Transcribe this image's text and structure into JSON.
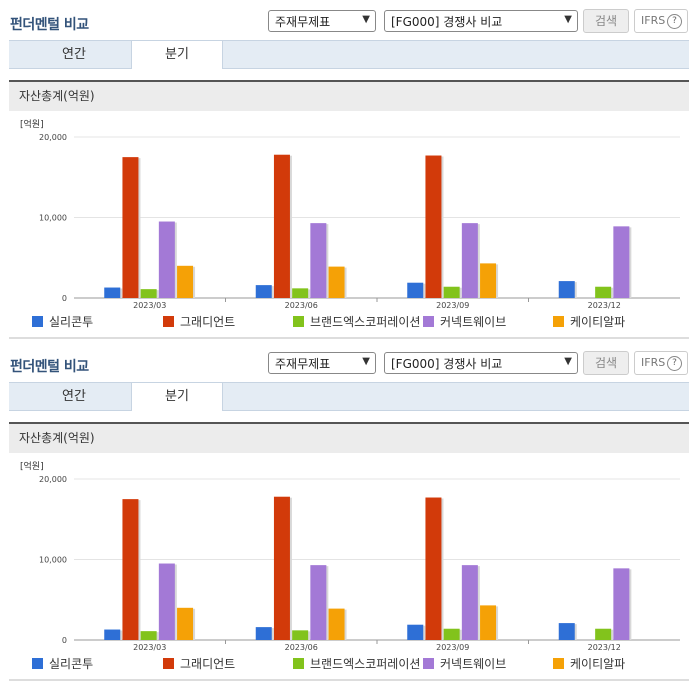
{
  "panels": [
    {
      "title": "펀더멘털 비교",
      "select1": "주재무제표",
      "select2": "[FG000] 경쟁사 비교",
      "search_label": "검색",
      "ifrs_label": "IFRS",
      "help_icon": "?",
      "tabs": [
        {
          "label": "연간",
          "active": false
        },
        {
          "label": "분기",
          "active": true
        }
      ],
      "section_title": "자산총계(억원)"
    },
    {
      "title": "펀더멘털 비교",
      "select1": "주재무제표",
      "select2": "[FG000] 경쟁사 비교",
      "search_label": "검색",
      "ifrs_label": "IFRS",
      "help_icon": "?",
      "tabs": [
        {
          "label": "연간",
          "active": false
        },
        {
          "label": "분기",
          "active": true
        }
      ],
      "section_title": "자산총계(억원)"
    }
  ],
  "chart_data": [
    {
      "type": "bar",
      "unit_label": "[억원]",
      "categories": [
        "2023/03",
        "2023/06",
        "2023/09",
        "2023/12"
      ],
      "ylim": [
        0,
        20000
      ],
      "yticks": [
        "0",
        "10,000",
        "20,000"
      ],
      "series": [
        {
          "name": "실리콘투",
          "color": "#2e6fd6",
          "values": [
            1300,
            1600,
            1900,
            2100
          ]
        },
        {
          "name": "그래디언트",
          "color": "#d23a0a",
          "values": [
            17500,
            17800,
            17700,
            null
          ]
        },
        {
          "name": "브랜드엑스코퍼레이션",
          "color": "#82c31c",
          "values": [
            1100,
            1200,
            1400,
            1400
          ]
        },
        {
          "name": "커넥트웨이브",
          "color": "#a379d6",
          "values": [
            9500,
            9300,
            9300,
            8900
          ]
        },
        {
          "name": "케이티알파",
          "color": "#f5a106",
          "values": [
            4000,
            3900,
            4300,
            null
          ]
        }
      ],
      "legend": "bottom",
      "grid": true
    },
    {
      "type": "bar",
      "unit_label": "[억원]",
      "categories": [
        "2023/03",
        "2023/06",
        "2023/09",
        "2023/12"
      ],
      "ylim": [
        0,
        20000
      ],
      "yticks": [
        "0",
        "10,000",
        "20,000"
      ],
      "series": [
        {
          "name": "실리콘투",
          "color": "#2e6fd6",
          "values": [
            1300,
            1600,
            1900,
            2100
          ]
        },
        {
          "name": "그래디언트",
          "color": "#d23a0a",
          "values": [
            17500,
            17800,
            17700,
            null
          ]
        },
        {
          "name": "브랜드엑스코퍼레이션",
          "color": "#82c31c",
          "values": [
            1100,
            1200,
            1400,
            1400
          ]
        },
        {
          "name": "커넥트웨이브",
          "color": "#a379d6",
          "values": [
            9500,
            9300,
            9300,
            8900
          ]
        },
        {
          "name": "케이티알파",
          "color": "#f5a106",
          "values": [
            4000,
            3900,
            4300,
            null
          ]
        }
      ],
      "legend": "bottom",
      "grid": true
    }
  ]
}
